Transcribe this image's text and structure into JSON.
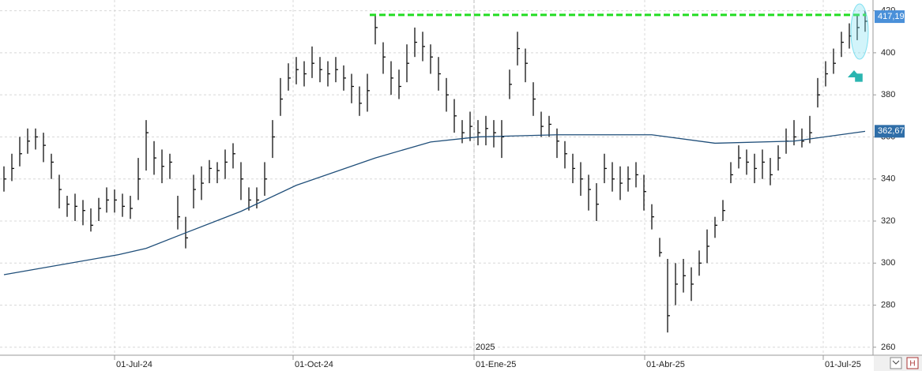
{
  "chart_data": {
    "type": "ohlc",
    "xlim": [
      -0.5,
      110
    ],
    "ylim": [
      256.2,
      425.1
    ],
    "yticks": [
      260,
      280,
      300,
      320,
      340,
      360,
      380,
      400,
      420
    ],
    "xticks": [
      {
        "value": 14,
        "label": "01-Jul-24"
      },
      {
        "value": 36.6,
        "label": "01-Oct-24"
      },
      {
        "value": 59.5,
        "label": "01-Ene-25"
      },
      {
        "value": 81.1,
        "label": "01-Abr-25"
      },
      {
        "value": 103.7,
        "label": "01-Jul-25"
      }
    ],
    "year_marker": {
      "value": 59.5,
      "label": "2025"
    },
    "grid": true,
    "color": "#111111",
    "high": [
      346,
      352,
      360,
      364,
      364,
      362,
      352,
      342,
      332,
      333,
      330,
      326,
      331,
      336,
      335,
      333,
      332,
      350,
      368,
      358,
      354,
      352,
      332,
      322,
      342,
      346,
      349,
      348,
      354,
      357,
      348,
      336,
      336,
      348,
      368,
      388,
      395,
      398,
      396,
      403,
      398,
      396,
      398,
      394,
      390,
      384,
      390,
      418,
      405,
      396,
      392,
      404,
      412,
      410,
      404,
      398,
      388,
      378,
      368,
      372,
      368,
      370,
      368,
      368,
      392,
      410,
      402,
      386,
      372,
      370,
      364,
      358,
      352,
      348,
      342,
      338,
      352,
      348,
      346,
      346,
      348,
      342,
      328,
      312,
      302,
      300,
      302,
      298,
      306,
      316,
      322,
      330,
      348,
      356,
      354,
      352,
      354,
      350,
      356,
      364,
      368,
      364,
      370,
      388,
      396,
      402,
      410,
      414,
      418,
      420
    ],
    "low": [
      334,
      339,
      346,
      352,
      354,
      348,
      340,
      326,
      322,
      320,
      318,
      315,
      320,
      324,
      324,
      322,
      321,
      330,
      344,
      342,
      338,
      340,
      316,
      307,
      326,
      330,
      338,
      338,
      340,
      345,
      330,
      325,
      326,
      332,
      350,
      370,
      382,
      385,
      384,
      388,
      386,
      384,
      386,
      382,
      376,
      370,
      372,
      404,
      390,
      380,
      378,
      386,
      398,
      396,
      390,
      382,
      372,
      362,
      357,
      358,
      356,
      356,
      355,
      350,
      378,
      394,
      386,
      370,
      360,
      360,
      350,
      345,
      338,
      332,
      325,
      320,
      338,
      334,
      330,
      334,
      336,
      325,
      316,
      303,
      267,
      280,
      286,
      282,
      294,
      300,
      312,
      320,
      338,
      345,
      342,
      338,
      340,
      337,
      344,
      352,
      356,
      355,
      357,
      374,
      384,
      390,
      398,
      402,
      406,
      410
    ],
    "close": [
      340,
      345,
      352,
      358,
      360,
      356,
      348,
      335,
      328,
      327,
      325,
      318,
      326,
      330,
      330,
      327,
      326,
      340,
      362,
      350,
      346,
      348,
      322,
      312,
      335,
      338,
      345,
      344,
      348,
      352,
      340,
      330,
      330,
      340,
      360,
      378,
      388,
      392,
      390,
      395,
      392,
      390,
      392,
      388,
      384,
      376,
      382,
      412,
      398,
      388,
      384,
      395,
      405,
      403,
      398,
      390,
      380,
      370,
      362,
      365,
      362,
      364,
      362,
      360,
      385,
      402,
      395,
      378,
      365,
      366,
      358,
      352,
      345,
      340,
      335,
      328,
      345,
      340,
      338,
      340,
      342,
      334,
      322,
      305,
      275,
      290,
      294,
      290,
      300,
      308,
      318,
      325,
      342,
      350,
      348,
      345,
      348,
      342,
      350,
      358,
      360,
      358,
      362,
      380,
      390,
      395,
      405,
      408,
      412,
      415
    ],
    "moving_average": {
      "color": "#1f4e79",
      "x": [
        0,
        14.5,
        18,
        23,
        30,
        37,
        47,
        54,
        60,
        70,
        82,
        90,
        100,
        109
      ],
      "values": [
        294.5,
        304,
        307,
        314.4,
        324.6,
        337,
        350,
        357.6,
        360,
        361,
        361,
        357,
        358,
        362.67
      ],
      "value_label": "362,67"
    },
    "last_price": {
      "value": 417.19,
      "label": "417,19"
    },
    "resistance": {
      "value": 418,
      "x": [
        46.3,
        109.2
      ],
      "color": "#22dd22"
    }
  }
}
